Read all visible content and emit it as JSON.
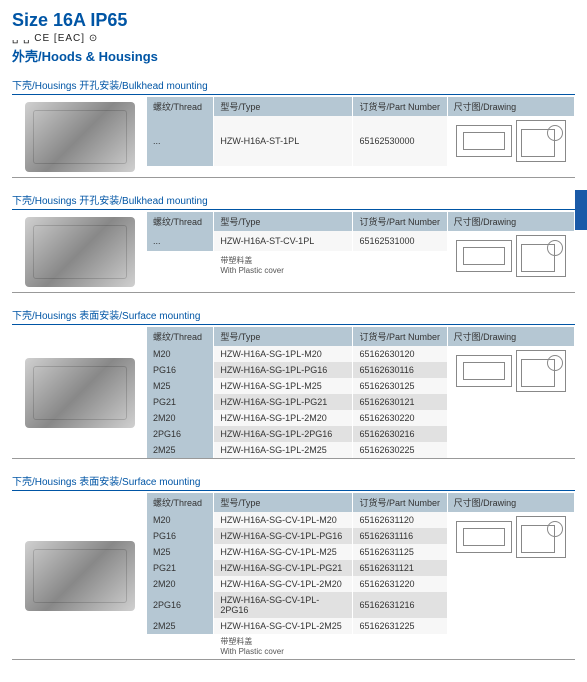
{
  "header": {
    "title": "Size 16A IP65",
    "certifications": "␣ ␣ CE [EAC] ⊙",
    "subtitle": "外壳/Hoods & Housings"
  },
  "columns": {
    "thread": "螺纹/Thread",
    "type": "型号/Type",
    "part": "订货号/Part Number",
    "drawing": "尺寸图/Drawing"
  },
  "sections": [
    {
      "title": "下壳/Housings  开孔安装/Bulkhead mounting",
      "rows": [
        {
          "thread": "...",
          "type": "HZW-H16A-ST-1PL",
          "part": "65162530000"
        }
      ],
      "note": null
    },
    {
      "title": "下壳/Housings  开孔安装/Bulkhead mounting",
      "rows": [
        {
          "thread": "...",
          "type": "HZW-H16A-ST-CV-1PL",
          "part": "65162531000"
        }
      ],
      "note": "带塑料盖\nWith Plastic cover"
    },
    {
      "title": "下壳/Housings  表面安装/Surface mounting",
      "rows": [
        {
          "thread": "M20",
          "type": "HZW-H16A-SG-1PL-M20",
          "part": "65162630120"
        },
        {
          "thread": "PG16",
          "type": "HZW-H16A-SG-1PL-PG16",
          "part": "65162630116"
        },
        {
          "thread": "M25",
          "type": "HZW-H16A-SG-1PL-M25",
          "part": "65162630125"
        },
        {
          "thread": "PG21",
          "type": "HZW-H16A-SG-1PL-PG21",
          "part": "65162630121"
        },
        {
          "thread": "2M20",
          "type": "HZW-H16A-SG-1PL-2M20",
          "part": "65162630220"
        },
        {
          "thread": "2PG16",
          "type": "HZW-H16A-SG-1PL-2PG16",
          "part": "65162630216"
        },
        {
          "thread": "2M25",
          "type": "HZW-H16A-SG-1PL-2M25",
          "part": "65162630225"
        }
      ],
      "note": null
    },
    {
      "title": "下壳/Housings  表面安装/Surface mounting",
      "rows": [
        {
          "thread": "M20",
          "type": "HZW-H16A-SG-CV-1PL-M20",
          "part": "65162631120"
        },
        {
          "thread": "PG16",
          "type": "HZW-H16A-SG-CV-1PL-PG16",
          "part": "65162631116"
        },
        {
          "thread": "M25",
          "type": "HZW-H16A-SG-CV-1PL-M25",
          "part": "65162631125"
        },
        {
          "thread": "PG21",
          "type": "HZW-H16A-SG-CV-1PL-PG21",
          "part": "65162631121"
        },
        {
          "thread": "2M20",
          "type": "HZW-H16A-SG-CV-1PL-2M20",
          "part": "65162631220"
        },
        {
          "thread": "2PG16",
          "type": "HZW-H16A-SG-CV-1PL-2PG16",
          "part": "65162631216"
        },
        {
          "thread": "2M25",
          "type": "HZW-H16A-SG-CV-1PL-2M25",
          "part": "65162631225"
        }
      ],
      "note": "带塑料盖\nWith Plastic cover"
    }
  ],
  "colors": {
    "brand": "#0055a5",
    "header_bg": "#b5c7d3",
    "row_alt": "#e1e1e1",
    "row": "#f7f7f7"
  }
}
